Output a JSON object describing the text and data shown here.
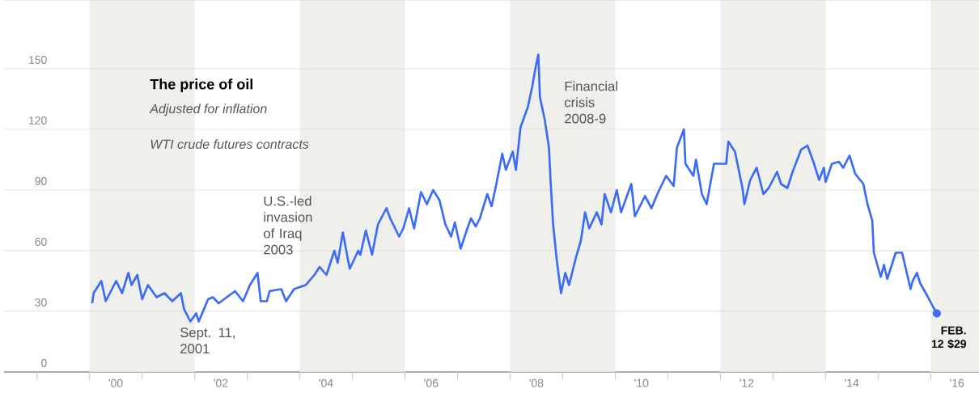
{
  "chart_data": {
    "type": "line",
    "title": "The price of oil",
    "subtitle": "Adjusted for inflation",
    "annotations": [
      "WTI crude futures contracts",
      "U.S.-led invasion of Iraq 2003",
      "Sept. 11, 2001",
      "Financial crisis 2008-9",
      {
        "text": "FEB. 12 $29",
        "x": "2016-02-12",
        "y": 29
      }
    ],
    "xlim": [
      "1998-05-17",
      "2016-12-02"
    ],
    "ylim": [
      0,
      184
    ],
    "xticks": [
      {
        "value": "2000-07-01",
        "label": "'00"
      },
      {
        "value": "2002-07-01",
        "label": "'02"
      },
      {
        "value": "2004-07-01",
        "label": "'04"
      },
      {
        "value": "2006-07-01",
        "label": "'06"
      },
      {
        "value": "2008-07-01",
        "label": "'08"
      },
      {
        "value": "2010-07-01",
        "label": "'10"
      },
      {
        "value": "2012-07-01",
        "label": "'12"
      },
      {
        "value": "2014-07-01",
        "label": "'14"
      },
      {
        "value": "2016-07-01",
        "label": "'16"
      },
      {
        "value": "1999-01-01",
        "label": null
      },
      {
        "value": "2000-01-01",
        "label": null
      },
      {
        "value": "2001-01-01",
        "label": null
      },
      {
        "value": "2002-01-01",
        "label": null
      },
      {
        "value": "2003-01-01",
        "label": null
      },
      {
        "value": "2004-01-01",
        "label": null
      },
      {
        "value": "2005-01-01",
        "label": null
      },
      {
        "value": "2006-01-01",
        "label": null
      },
      {
        "value": "2007-01-01",
        "label": null
      },
      {
        "value": "2008-01-01",
        "label": null
      },
      {
        "value": "2009-01-01",
        "label": null
      },
      {
        "value": "2010-01-01",
        "label": null
      },
      {
        "value": "2011-01-01",
        "label": null
      },
      {
        "value": "2012-01-01",
        "label": null
      },
      {
        "value": "2013-01-01",
        "label": null
      },
      {
        "value": "2014-01-01",
        "label": null
      },
      {
        "value": "2015-01-01",
        "label": null
      },
      {
        "value": "2016-01-01",
        "label": null
      }
    ],
    "yticks": [
      0,
      30,
      60,
      90,
      120,
      150
    ],
    "grid": "y",
    "bands": [
      {
        "axis": "x",
        "from": "2000-01-01",
        "to": "2002-01-01",
        "color": "#efefeb"
      },
      {
        "axis": "x",
        "from": "2004-01-01",
        "to": "2006-01-01",
        "color": "#efefeb"
      },
      {
        "axis": "x",
        "from": "2008-01-01",
        "to": "2010-01-01",
        "color": "#efefeb"
      },
      {
        "axis": "x",
        "from": "2012-01-01",
        "to": "2014-01-01",
        "color": "#efefeb"
      },
      {
        "axis": "x",
        "from": "2016-01-01",
        "to": "2016-12-02",
        "color": "#efefeb"
      }
    ],
    "series": [
      {
        "color": "#3b6cf5",
        "x": [
          "2000-01-19",
          "2000-01-29",
          "2000-03-23",
          "2000-04-22",
          "2000-07-04",
          "2000-08-14",
          "2000-09-27",
          "2000-10-19",
          "2000-11-28",
          "2001-01-01",
          "2001-02-10",
          "2001-04-11",
          "2001-06-05",
          "2001-07-29",
          "2001-09-27",
          "2001-10-19",
          "2001-12-02",
          "2002-01-11",
          "2002-01-29",
          "2002-04-04",
          "2002-05-07",
          "2002-06-16",
          "2002-10-08",
          "2002-12-02",
          "2003-01-19",
          "2003-03-13",
          "2003-04-04",
          "2003-05-17",
          "2003-06-05",
          "2003-08-25",
          "2003-09-27",
          "2003-11-21",
          "2004-02-10",
          "2004-04-11",
          "2004-05-17",
          "2004-07-04",
          "2004-08-28",
          "2004-09-20",
          "2004-10-26",
          "2004-12-13",
          "2005-02-10",
          "2005-02-25",
          "2005-04-04",
          "2005-05-17",
          "2005-06-27",
          "2005-08-25",
          "2005-09-20",
          "2005-11-21",
          "2005-12-20",
          "2006-01-29",
          "2006-03-05",
          "2006-04-22",
          "2006-06-02",
          "2006-07-15",
          "2006-08-28",
          "2006-10-08",
          "2006-11-17",
          "2006-12-13",
          "2007-01-22",
          "2007-03-05",
          "2007-04-04",
          "2007-05-07",
          "2007-06-05",
          "2007-07-26",
          "2007-08-25",
          "2007-09-27",
          "2007-11-07",
          "2007-12-02",
          "2008-01-19",
          "2008-02-10",
          "2008-03-13",
          "2008-05-03",
          "2008-06-02",
          "2008-06-27",
          "2008-07-15",
          "2008-07-26",
          "2008-08-28",
          "2008-09-27",
          "2008-10-08",
          "2008-10-26",
          "2008-11-21",
          "2008-12-20",
          "2009-01-19",
          "2009-02-14",
          "2009-04-04",
          "2009-05-07",
          "2009-06-05",
          "2009-07-04",
          "2009-08-25",
          "2009-09-27",
          "2009-10-19",
          "2009-12-02",
          "2010-01-11",
          "2010-02-10",
          "2010-04-22",
          "2010-05-17",
          "2010-07-26",
          "2010-09-09",
          "2010-10-26",
          "2010-12-20",
          "2011-02-10",
          "2011-03-05",
          "2011-04-22",
          "2011-05-03",
          "2011-06-27",
          "2011-07-15",
          "2011-08-25",
          "2011-09-27",
          "2011-11-17",
          "2012-01-01",
          "2012-02-10",
          "2012-02-25",
          "2012-04-11",
          "2012-06-02",
          "2012-06-16",
          "2012-07-26",
          "2012-09-09",
          "2012-10-26",
          "2012-12-02",
          "2013-01-29",
          "2013-02-25",
          "2013-04-11",
          "2013-05-17",
          "2013-07-15",
          "2013-08-28",
          "2013-10-08",
          "2013-11-17",
          "2013-12-20",
          "2014-01-01",
          "2014-02-14",
          "2014-04-04",
          "2014-05-03",
          "2014-06-16",
          "2014-07-26",
          "2014-09-20",
          "2014-10-19",
          "2014-11-21",
          "2014-12-02",
          "2015-01-19",
          "2015-02-10",
          "2015-03-05",
          "2015-05-03",
          "2015-06-16",
          "2015-08-14",
          "2015-08-28",
          "2015-09-27",
          "2015-10-19",
          "2015-12-13",
          "2016-01-19",
          "2016-02-12"
        ],
        "values": [
          34,
          39,
          45,
          35,
          45,
          39,
          49,
          43,
          48,
          36,
          43,
          37,
          39,
          35,
          39,
          31,
          25,
          29,
          25,
          36,
          37,
          34,
          40,
          35,
          43,
          49,
          35,
          35,
          40,
          41,
          35,
          41,
          43,
          48,
          52,
          48,
          60,
          54,
          69,
          51,
          60,
          58,
          70,
          58,
          73,
          81,
          76,
          67,
          71,
          81,
          71,
          89,
          83,
          90,
          85,
          73,
          67,
          74,
          61,
          70,
          76,
          72,
          76,
          88,
          82,
          93,
          108,
          100,
          109,
          100,
          121,
          131,
          141,
          151,
          157,
          136,
          125,
          111,
          95,
          73,
          55,
          39,
          49,
          43,
          57,
          65,
          79,
          71,
          79,
          73,
          88,
          79,
          90,
          79,
          93,
          77,
          87,
          81,
          89,
          97,
          92,
          111,
          120,
          103,
          97,
          105,
          88,
          83,
          103,
          103,
          103,
          114,
          109,
          91,
          83,
          95,
          101,
          88,
          91,
          99,
          93,
          91,
          99,
          110,
          112,
          104,
          95,
          101,
          94,
          103,
          104,
          101,
          107,
          98,
          93,
          83,
          75,
          59,
          47,
          53,
          46,
          59,
          59,
          41,
          45,
          49,
          44,
          37,
          32,
          29
        ]
      },
      {
        "type": "scatter",
        "color": "#3b6cf5",
        "marker": "circle",
        "x": [
          "2016-02-12"
        ],
        "values": [
          29
        ]
      }
    ]
  }
}
